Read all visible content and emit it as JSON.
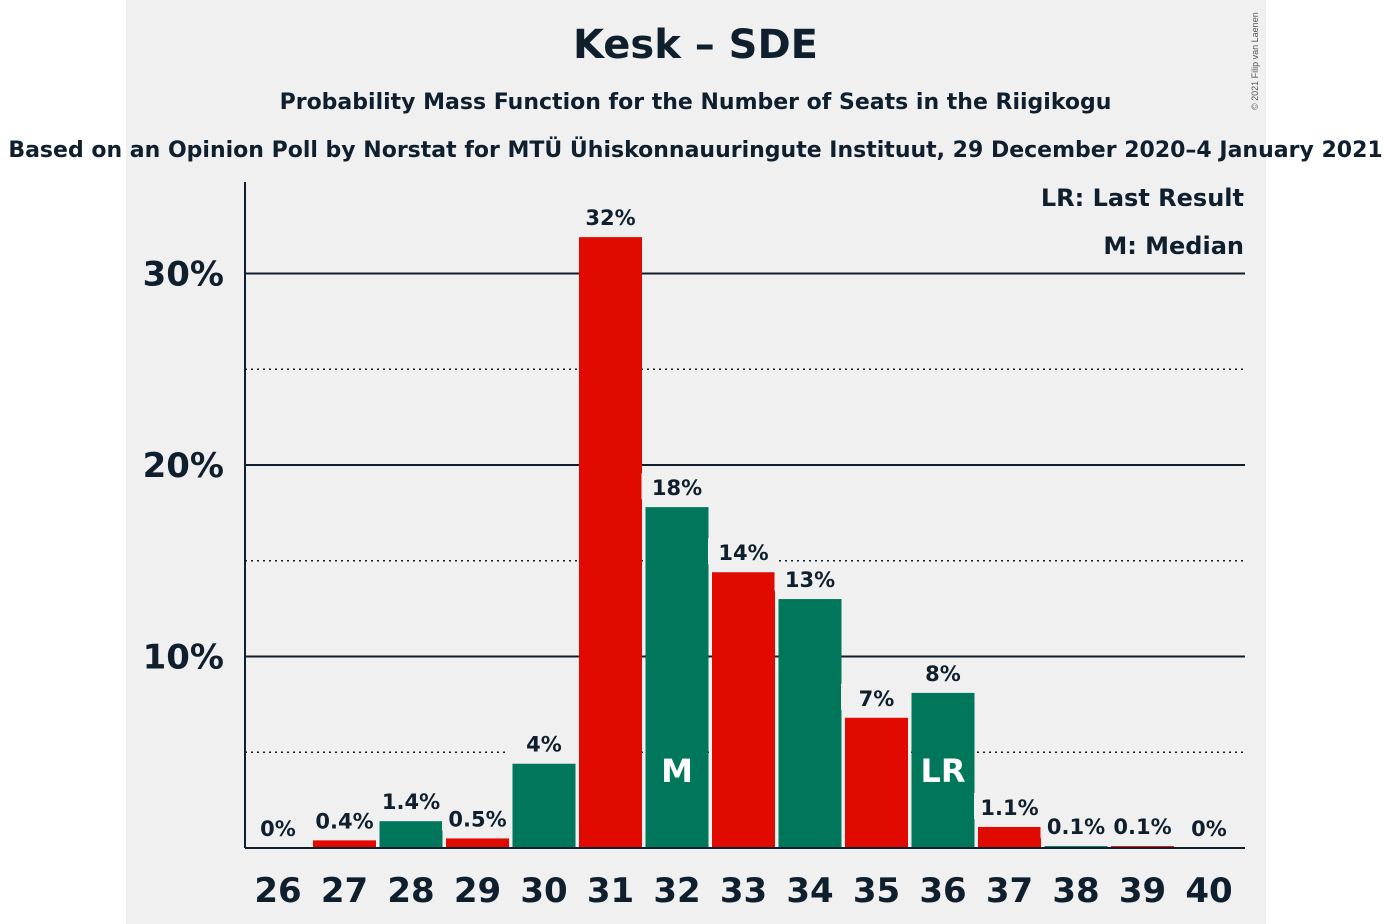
{
  "title": "Kesk – SDE",
  "subtitle": "Probability Mass Function for the Number of Seats in the Riigikogu",
  "source": "Based on an Opinion Poll by Norstat for MTÜ Ühiskonnauuringute Instituut, 29 December 2020–4 January 2021",
  "copyright": "© 2021 Filip van Laenen",
  "legend": {
    "lr": "LR: Last Result",
    "m": "M: Median"
  },
  "colors": {
    "red": "#e10a00",
    "green": "#00775a",
    "background": "#f0f0f0",
    "text": "#0f1f2d"
  },
  "chart_data": {
    "type": "bar",
    "title": "Kesk – SDE",
    "categories": [
      "26",
      "27",
      "28",
      "29",
      "30",
      "31",
      "32",
      "33",
      "34",
      "35",
      "36",
      "37",
      "38",
      "39",
      "40"
    ],
    "values": [
      0,
      0.4,
      1.4,
      0.5,
      4.4,
      31.9,
      17.8,
      14.4,
      13.0,
      6.8,
      8.1,
      1.1,
      0.1,
      0.1,
      0
    ],
    "value_labels": [
      "0%",
      "0.4%",
      "1.4%",
      "0.5%",
      "4%",
      "32%",
      "18%",
      "14%",
      "13%",
      "7%",
      "8%",
      "1.1%",
      "0.1%",
      "0.1%",
      "0%"
    ],
    "bar_colors": [
      "red",
      "red",
      "green",
      "red",
      "green",
      "red",
      "green",
      "red",
      "green",
      "red",
      "green",
      "red",
      "green",
      "red",
      "green"
    ],
    "markers": {
      "32": "M",
      "36": "LR"
    },
    "yticks": [
      10,
      20,
      30
    ],
    "ytick_labels": [
      "10%",
      "20%",
      "30%"
    ],
    "ylim": [
      0,
      35
    ],
    "minor_gridlines": [
      5,
      15,
      25
    ],
    "legend_position": "top-right"
  }
}
